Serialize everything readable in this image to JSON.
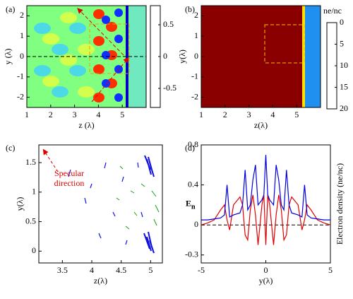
{
  "chart_data": [
    {
      "type": "heatmap",
      "panel": "(a)",
      "xlabel": "z (λ)",
      "ylabel": "y (λ)",
      "xlim": [
        1,
        6
      ],
      "ylim": [
        -2.5,
        2.5
      ],
      "xticks": [
        1,
        2,
        3,
        4,
        5
      ],
      "yticks": [
        -2,
        -1,
        0,
        1,
        2
      ],
      "clim": [
        -0.8,
        0.8
      ],
      "cticks": [
        0.5,
        0,
        -0.5
      ],
      "colormap": "jet"
    },
    {
      "type": "heatmap",
      "panel": "(b)",
      "xlabel": "z(λ)",
      "ylabel": "y(λ)",
      "xlim": [
        1,
        6
      ],
      "ylim": [
        -2.5,
        2.5
      ],
      "xticks": [
        1,
        2,
        3,
        4,
        5
      ],
      "yticks": [
        -2,
        -1,
        0,
        1,
        2
      ],
      "clim": [
        0,
        20
      ],
      "cticks": [
        0,
        5,
        10,
        15,
        20
      ],
      "colorbar_label": "ne/nc",
      "colormap": "jet_reversed"
    },
    {
      "type": "quiver",
      "panel": "(c)",
      "xlabel": "z(λ)",
      "ylabel": "y(λ)",
      "xlim": [
        3.1,
        5.2
      ],
      "ylim": [
        -0.2,
        1.8
      ],
      "xticks": [
        3.5,
        4,
        4.5,
        5
      ],
      "yticks": [
        0,
        0.5,
        1,
        1.5
      ],
      "annotation": [
        "Specular",
        "direction"
      ]
    },
    {
      "type": "line",
      "panel": "(d)",
      "xlabel": "y(λ)",
      "ylabel": {
        "main": "E",
        "sub": "n"
      },
      "y2label": "Electron density (ne/nc)",
      "xlim": [
        -5,
        5
      ],
      "ylim": [
        -0.38,
        0.8
      ],
      "xticks": [
        -5,
        0,
        5
      ],
      "yticks": [
        -0.3,
        0,
        0.4,
        0.8
      ],
      "hline": 0,
      "x": [
        -5,
        -4.5,
        -4,
        -3.5,
        -3.2,
        -3,
        -2.8,
        -2.5,
        -2,
        -1.8,
        -1.6,
        -1.4,
        -1.2,
        -1,
        -0.8,
        -0.6,
        -0.3,
        -0.15,
        0,
        0.15,
        0.3,
        0.6,
        0.8,
        1,
        1.2,
        1.4,
        1.6,
        1.8,
        2,
        2.5,
        2.8,
        3,
        3.2,
        3.5,
        4,
        4.5,
        5
      ],
      "series": [
        {
          "color": "#e00000",
          "values": [
            0,
            0.02,
            0.05,
            0.15,
            0.2,
            0.05,
            -0.05,
            0.2,
            0.28,
            0.2,
            -0.1,
            -0.15,
            0.15,
            0.3,
            0.1,
            -0.2,
            0.2,
            0.3,
            -0.2,
            0.3,
            0.2,
            -0.2,
            0.1,
            0.3,
            0.15,
            -0.15,
            -0.1,
            0.2,
            0.28,
            0.2,
            -0.05,
            0.05,
            0.2,
            0.15,
            0.05,
            0.02,
            0
          ]
        },
        {
          "color": "#0000e0",
          "values": [
            0.05,
            0.05,
            0.06,
            0.07,
            0.1,
            0.4,
            0.08,
            0.1,
            0.12,
            0.2,
            0.55,
            0.15,
            0.2,
            0.45,
            0.6,
            0.2,
            0.25,
            0.3,
            0.7,
            0.3,
            0.25,
            0.2,
            0.6,
            0.45,
            0.2,
            0.15,
            0.55,
            0.2,
            0.12,
            0.1,
            0.08,
            0.4,
            0.1,
            0.07,
            0.06,
            0.05,
            0.05
          ]
        }
      ]
    }
  ]
}
